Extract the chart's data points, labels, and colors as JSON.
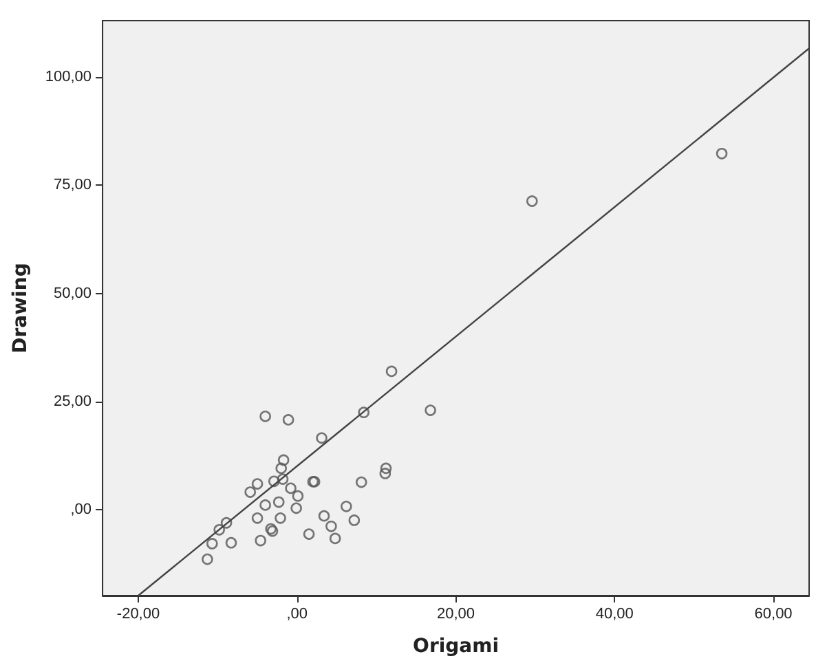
{
  "chart_data": {
    "type": "scatter",
    "xlabel": "Origami",
    "ylabel": "Drawing",
    "xlim": [
      -24.5,
      64.5
    ],
    "ylim": [
      -19.8,
      113
    ],
    "xticks": [
      {
        "value": -20,
        "label": "-20,00"
      },
      {
        "value": 0,
        "label": ",00"
      },
      {
        "value": 20,
        "label": "20,00"
      },
      {
        "value": 40,
        "label": "40,00"
      },
      {
        "value": 60,
        "label": "60,00"
      }
    ],
    "yticks": [
      {
        "value": 0,
        "label": ",00"
      },
      {
        "value": 25,
        "label": "25,00"
      },
      {
        "value": 50,
        "label": "50,00"
      },
      {
        "value": 75,
        "label": "75,00"
      },
      {
        "value": 100,
        "label": "100,00"
      }
    ],
    "marker": "circle",
    "series": [
      {
        "color": "#555555",
        "x": [
          53.5,
          29.6,
          11.9,
          16.8,
          8.4,
          -4.0,
          -1.1,
          3.1,
          -1.7,
          -2.0,
          11.2,
          11.1,
          -2.9,
          -1.8,
          -5.0,
          2.0,
          2.2,
          8.1,
          -5.9,
          -0.8,
          0.1,
          -4.0,
          -2.3,
          -0.1,
          6.2,
          -5.0,
          -2.1,
          3.4,
          7.2,
          -8.9,
          -9.8,
          -3.3,
          -3.1,
          4.3,
          1.5,
          4.8,
          -10.7,
          -8.3,
          -4.6,
          -11.3
        ],
        "values": [
          82.3,
          71.3,
          32.0,
          23.0,
          22.5,
          21.6,
          20.8,
          16.6,
          11.5,
          9.6,
          9.6,
          8.4,
          6.6,
          7.1,
          6.0,
          6.5,
          6.5,
          6.4,
          4.1,
          5.0,
          3.2,
          1.1,
          1.8,
          0.4,
          0.8,
          -1.9,
          -1.9,
          -1.4,
          -2.4,
          -3.0,
          -4.6,
          -4.4,
          -4.9,
          -3.8,
          -5.6,
          -6.6,
          -7.8,
          -7.6,
          -7.1,
          -11.4
        ]
      },
      {
        "type": "line",
        "color": "#444444",
        "marker": "none",
        "line_style": "solid",
        "x": [
          -20,
          64.5
        ],
        "values": [
          -19.8,
          106.6
        ]
      }
    ]
  }
}
